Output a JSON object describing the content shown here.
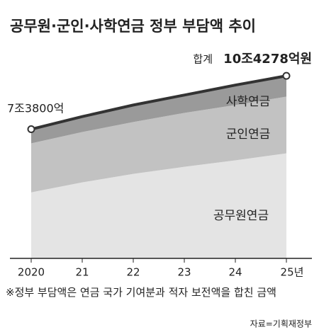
{
  "chart_data": {
    "type": "stacked-area",
    "title": "공무원·군인·사학연금 정부 부담액 추이",
    "categories": [
      "2020",
      "21",
      "22",
      "23",
      "24",
      "25년"
    ],
    "series": [
      {
        "name": "공무원연금",
        "color": "#e4e4e4",
        "values": [
          37700,
          43400,
          48300,
          52300,
          56000,
          60000
        ]
      },
      {
        "name": "군인연금",
        "color": "#c2c2c2",
        "values": [
          28000,
          28800,
          29600,
          30800,
          31600,
          32400
        ]
      },
      {
        "name": "사학연금",
        "color": "#9a9a9a",
        "values": [
          8100,
          8800,
          9700,
          10200,
          11400,
          11878
        ]
      }
    ],
    "ylim": [
      0,
      110000
    ],
    "annotations": {
      "start": "7조3800억",
      "end_prefix": "합계",
      "end": "10조4278억원"
    },
    "footnote": "※정부 부담액은 연금 국가 기여분과 적자 보전액을 합친 금액",
    "source": "자료=기획재정부"
  }
}
